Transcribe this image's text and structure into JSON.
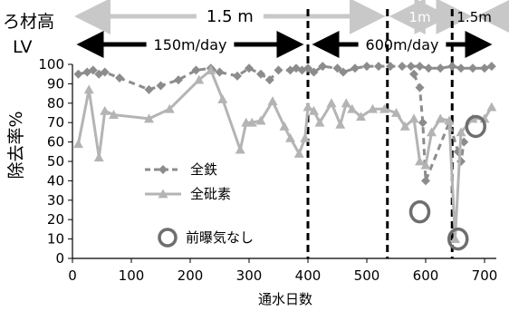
{
  "chart_data": {
    "type": "line",
    "xlabel": "通水日数",
    "ylabel": "除去率%",
    "xlim": [
      0,
      720
    ],
    "ylim": [
      0,
      100
    ],
    "xticks": [
      0,
      100,
      200,
      300,
      400,
      500,
      600,
      700
    ],
    "yticks": [
      0,
      10,
      20,
      30,
      40,
      50,
      60,
      70,
      80,
      90,
      100
    ],
    "grid": false,
    "legend_position": "lower-left",
    "row_labels": [
      "ろ材高",
      "LV"
    ],
    "ranges": [
      {
        "row": "ろ材高",
        "label": "1.5 m",
        "start": 0,
        "end": 535,
        "color": "#c8c8c8"
      },
      {
        "row": "ろ材高",
        "label": "1m",
        "start": 535,
        "end": 645,
        "color": "#c8c8c8"
      },
      {
        "row": "ろ材高",
        "label": "1.5m",
        "start": 645,
        "end": 720,
        "color": "#c8c8c8"
      },
      {
        "row": "LV",
        "label": "150m/day",
        "start": 0,
        "end": 400,
        "color": "#000000"
      },
      {
        "row": "LV",
        "label": "600m/day",
        "start": 400,
        "end": 720,
        "color": "#000000"
      }
    ],
    "vlines": [
      400,
      535,
      645
    ],
    "series": [
      {
        "name": "全鉄",
        "color": "#8c8c8c",
        "marker": "diamond",
        "dash": true,
        "points": [
          [
            10,
            95
          ],
          [
            25,
            96
          ],
          [
            35,
            97
          ],
          [
            45,
            95
          ],
          [
            55,
            96
          ],
          [
            80,
            93
          ],
          [
            130,
            87
          ],
          [
            150,
            89
          ],
          [
            180,
            92
          ],
          [
            210,
            97
          ],
          [
            235,
            98
          ],
          [
            250,
            96
          ],
          [
            280,
            94
          ],
          [
            300,
            98
          ],
          [
            320,
            95
          ],
          [
            335,
            92
          ],
          [
            350,
            97
          ],
          [
            370,
            97
          ],
          [
            380,
            98
          ],
          [
            390,
            97
          ],
          [
            400,
            98
          ],
          [
            410,
            96
          ],
          [
            425,
            99
          ],
          [
            450,
            98
          ],
          [
            460,
            96
          ],
          [
            480,
            98
          ],
          [
            500,
            99
          ],
          [
            520,
            99
          ],
          [
            540,
            99
          ],
          [
            560,
            99
          ],
          [
            575,
            99
          ],
          [
            590,
            99
          ],
          [
            605,
            98
          ],
          [
            625,
            98
          ],
          [
            645,
            99
          ],
          [
            660,
            98
          ],
          [
            680,
            98
          ],
          [
            700,
            98
          ],
          [
            712,
            99
          ]
        ]
      },
      {
        "name": "全鉄 (前曝気なし)",
        "color": "#8c8c8c",
        "marker": "diamond",
        "dash": true,
        "points": [
          [
            580,
            95
          ],
          [
            590,
            88
          ],
          [
            595,
            70
          ],
          [
            600,
            40
          ],
          [
            640,
            70
          ],
          [
            655,
            55
          ],
          [
            660,
            50
          ],
          [
            665,
            60
          ]
        ]
      },
      {
        "name": "全砒素",
        "color": "#b4b4b4",
        "marker": "triangle",
        "dash": false,
        "points": [
          [
            10,
            59
          ],
          [
            28,
            87
          ],
          [
            45,
            52
          ],
          [
            55,
            76
          ],
          [
            70,
            74
          ],
          [
            130,
            72
          ],
          [
            165,
            77
          ],
          [
            215,
            92
          ],
          [
            235,
            97
          ],
          [
            255,
            82
          ],
          [
            285,
            56
          ],
          [
            295,
            70
          ],
          [
            305,
            70
          ],
          [
            320,
            71
          ],
          [
            340,
            81
          ],
          [
            360,
            68
          ],
          [
            370,
            62
          ],
          [
            385,
            54
          ],
          [
            395,
            62
          ],
          [
            400,
            78
          ],
          [
            410,
            76
          ],
          [
            420,
            70
          ],
          [
            440,
            80
          ],
          [
            455,
            69
          ],
          [
            465,
            80
          ],
          [
            475,
            77
          ],
          [
            490,
            73
          ],
          [
            510,
            77
          ],
          [
            530,
            77
          ],
          [
            550,
            75
          ],
          [
            565,
            68
          ],
          [
            580,
            72
          ],
          [
            590,
            50
          ],
          [
            600,
            48
          ],
          [
            610,
            65
          ],
          [
            625,
            72
          ],
          [
            640,
            71
          ],
          [
            650,
            10
          ],
          [
            660,
            65
          ],
          [
            680,
            72
          ],
          [
            700,
            72
          ],
          [
            712,
            78
          ]
        ]
      }
    ],
    "no_preaeration_markers": [
      [
        590,
        24
      ],
      [
        655,
        10
      ],
      [
        685,
        68
      ]
    ],
    "legend": [
      {
        "label": "全鉄",
        "style": "diamond-dash"
      },
      {
        "label": "全砒素",
        "style": "triangle-line"
      },
      {
        "label": "前曝気なし",
        "style": "circle"
      }
    ],
    "colors": {
      "iron": "#8c8c8c",
      "arsenic": "#b4b4b4",
      "circle": "#6e6e6e",
      "gray_arrow": "#c8c8c8",
      "black_arrow": "#000000"
    }
  }
}
